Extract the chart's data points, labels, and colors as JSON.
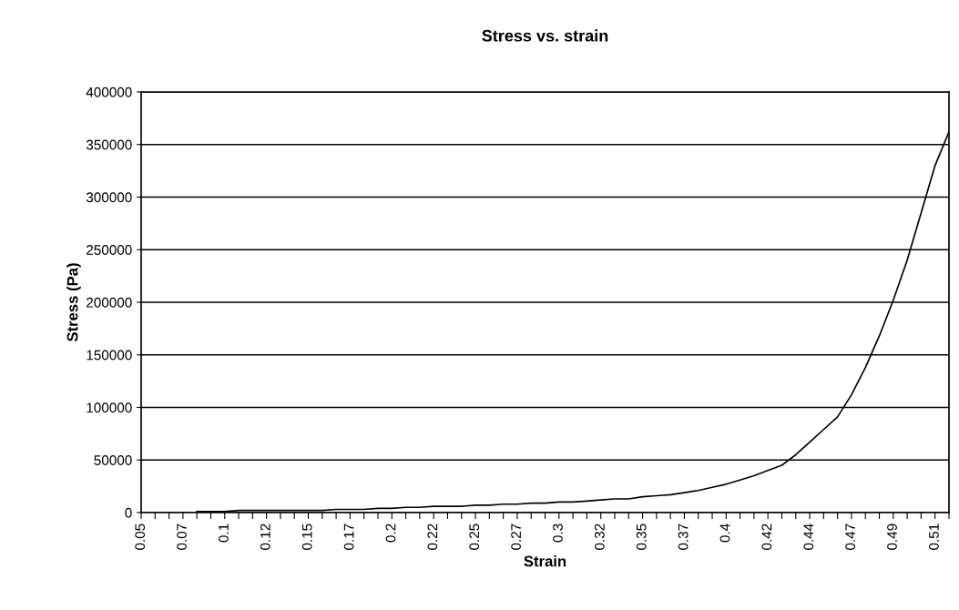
{
  "chart_data": {
    "type": "line",
    "title": "Stress vs. strain",
    "xlabel": "Strain",
    "ylabel": "Stress (Pa)",
    "categories": [
      "0.05",
      null,
      null,
      "0.07",
      null,
      null,
      "0.1",
      null,
      null,
      "0.12",
      null,
      null,
      "0.15",
      null,
      null,
      "0.17",
      null,
      null,
      "0.2",
      null,
      null,
      "0.22",
      null,
      null,
      "0.25",
      null,
      null,
      "0.27",
      null,
      null,
      "0.3",
      null,
      null,
      "0.32",
      null,
      null,
      "0.35",
      null,
      null,
      "0.37",
      null,
      null,
      "0.4",
      null,
      null,
      "0.42",
      null,
      null,
      "0.44",
      null,
      null,
      "0.47",
      null,
      null,
      "0.49",
      null,
      null,
      "0.51",
      null
    ],
    "series": [
      {
        "color": "#000000",
        "values": [
          null,
          null,
          null,
          null,
          1000,
          1000,
          1000,
          2000,
          2000,
          2000,
          2000,
          2000,
          2000,
          2000,
          3000,
          3000,
          3000,
          4000,
          4000,
          5000,
          5000,
          6000,
          6000,
          6000,
          7000,
          7000,
          8000,
          8000,
          9000,
          9000,
          10000,
          10000,
          11000,
          12000,
          13000,
          13000,
          15000,
          16000,
          17000,
          19000,
          21000,
          24000,
          27000,
          31000,
          35000,
          40000,
          45000,
          55000,
          67000,
          79000,
          91000,
          112000,
          138000,
          168000,
          202000,
          240000,
          285000,
          330000,
          362000
        ]
      }
    ],
    "ylim": [
      0,
      400000
    ],
    "yticks": [
      0,
      50000,
      100000,
      150000,
      200000,
      250000,
      300000,
      350000,
      400000
    ],
    "grid": "y",
    "marker": "none",
    "line_style": "solid"
  }
}
